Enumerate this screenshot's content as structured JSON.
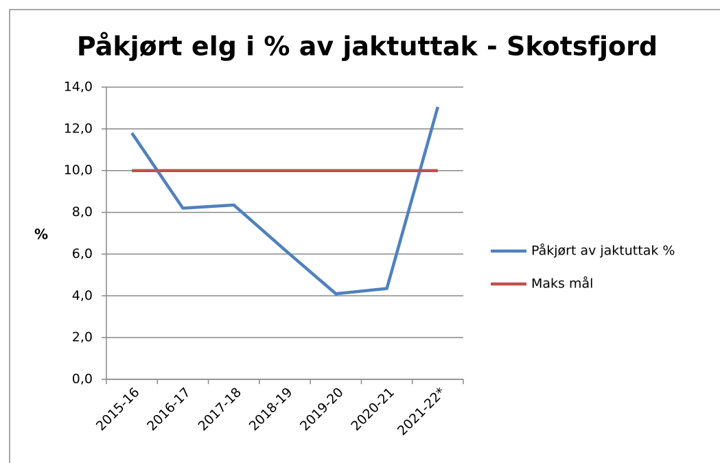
{
  "chart_data": {
    "type": "line",
    "title": "Påkjørt elg i % av jaktuttak - Skotsfjord",
    "y_label": "%",
    "categories": [
      "2015-16",
      "2016-17",
      "2017-18",
      "2018-19",
      "2019-20",
      "2020-21",
      "2021-22*"
    ],
    "series": [
      {
        "name": "Påkjørt av jaktuttak %",
        "color": "#4f81bd",
        "values": [
          11.8,
          8.2,
          8.35,
          6.2,
          4.1,
          4.35,
          13.05
        ]
      },
      {
        "name": "Maks mål",
        "color": "#c0504d",
        "values": [
          10,
          10,
          10,
          10,
          10,
          10,
          10
        ]
      }
    ],
    "ylim": [
      0,
      14
    ],
    "yticks": [
      {
        "value": 0,
        "label": "0,0"
      },
      {
        "value": 2,
        "label": "2,0"
      },
      {
        "value": 4,
        "label": "4,0"
      },
      {
        "value": 6,
        "label": "6,0"
      },
      {
        "value": 8,
        "label": "8,0"
      },
      {
        "value": 10,
        "label": "10,0"
      },
      {
        "value": 12,
        "label": "12,0"
      },
      {
        "value": 14,
        "label": "14,0"
      }
    ],
    "grid": true,
    "legend": "right"
  }
}
